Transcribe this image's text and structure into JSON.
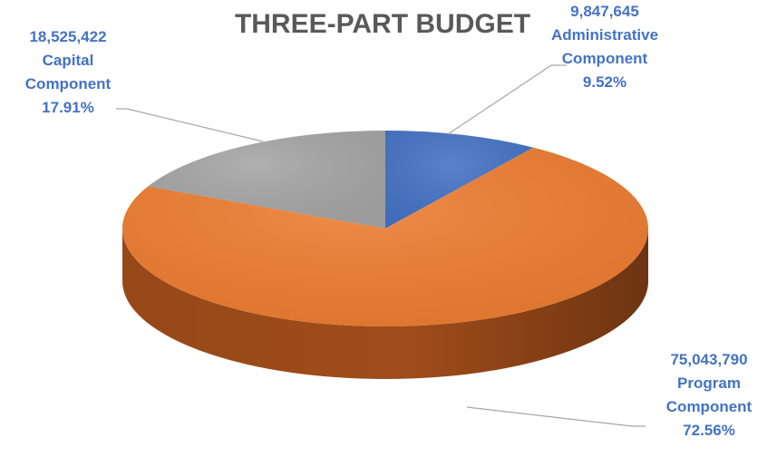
{
  "chart_data": {
    "type": "pie",
    "title": "THREE-PART BUDGET",
    "slices": [
      {
        "name_lines": [
          "Administrative",
          "Component"
        ],
        "value": 9847645,
        "value_label": "9,847,645",
        "percent_label": "9.52%",
        "color": "#4472c4",
        "side_color": "#2f5597"
      },
      {
        "name_lines": [
          "Program",
          "Component"
        ],
        "value": 75043790,
        "value_label": "75,043,790",
        "percent_label": "72.56%",
        "color": "#ed7d31",
        "side_color": "#a8501b"
      },
      {
        "name_lines": [
          "Capital",
          "Component"
        ],
        "value": 18525422,
        "value_label": "18,525,422",
        "percent_label": "17.91%",
        "color": "#a5a5a5",
        "side_color": "#7b7b7b"
      }
    ],
    "start_position": "top",
    "direction": "clockwise",
    "style": "3d-pie",
    "legend": "none",
    "label_color": "#4472c4",
    "title_color": "#595959",
    "leader_line_color": "#a6a6a6"
  }
}
